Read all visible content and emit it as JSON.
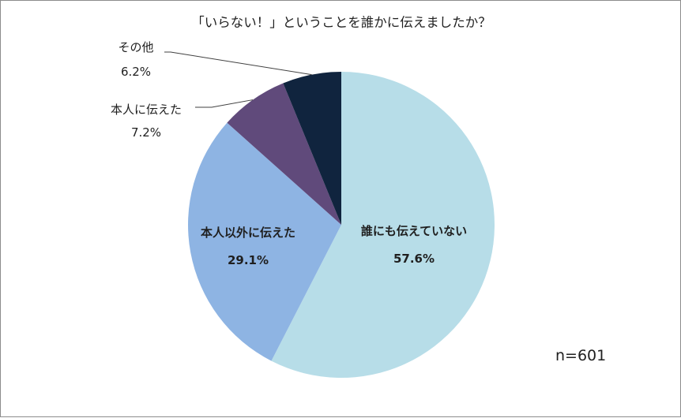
{
  "chart_data": {
    "type": "pie",
    "title": "「いらない！」ということを誰かに伝えましたか？",
    "note": "n=601",
    "slices": [
      {
        "label": "誰にも伝えていない",
        "value": 57.6,
        "value_label": "57.6%",
        "color": "#b7dde8",
        "label_position": "inside"
      },
      {
        "label": "本人以外に伝えた",
        "value": 29.1,
        "value_label": "29.1%",
        "color": "#8eb4e3",
        "label_position": "inside"
      },
      {
        "label": "本人に伝えた",
        "value": 7.2,
        "value_label": "7.2%",
        "color": "#604a7b",
        "label_position": "outside"
      },
      {
        "label": "その他",
        "value": 6.2,
        "value_label": "6.2%",
        "color": "#10243e",
        "label_position": "outside"
      }
    ],
    "start": "12 o'clock",
    "direction": "clockwise"
  }
}
